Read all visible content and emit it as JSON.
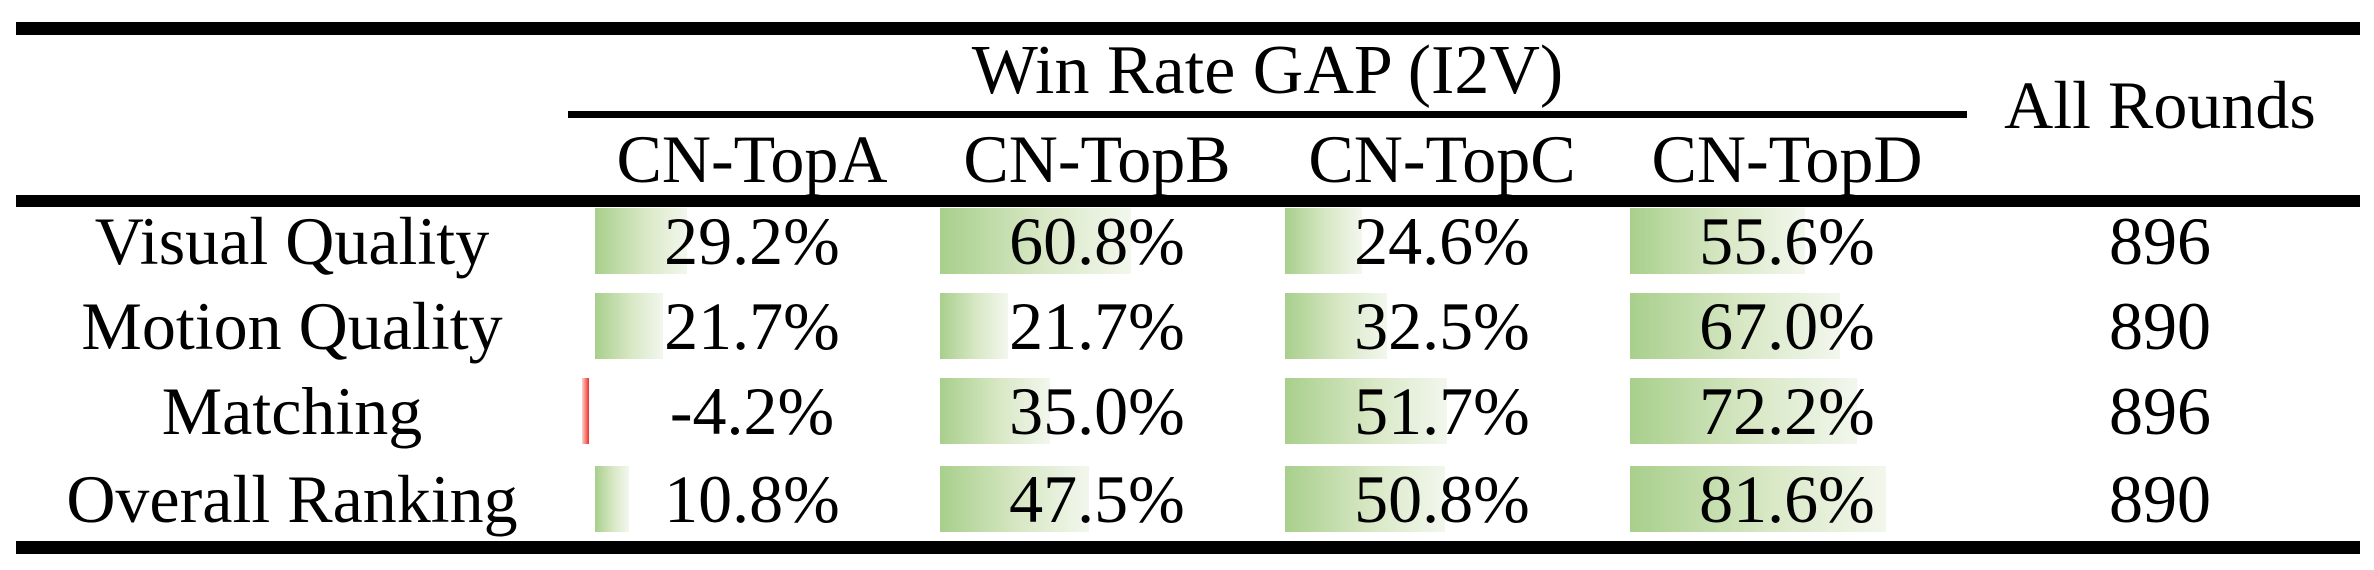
{
  "figure": {
    "title": "Win Rate GAP (I2V)",
    "all_rounds_label": "All Rounds",
    "columns": [
      "CN-TopA",
      "CN-TopB",
      "CN-TopC",
      "CN-TopD"
    ],
    "rows": [
      {
        "label": "Visual Quality",
        "cells": [
          {
            "text": "29.2%",
            "value": 29.2
          },
          {
            "text": "60.8%",
            "value": 60.8
          },
          {
            "text": "24.6%",
            "value": 24.6
          },
          {
            "text": "55.6%",
            "value": 55.6
          }
        ],
        "all_rounds": "896"
      },
      {
        "label": "Motion Quality",
        "cells": [
          {
            "text": "21.7%",
            "value": 21.7
          },
          {
            "text": "21.7%",
            "value": 21.7
          },
          {
            "text": "32.5%",
            "value": 32.5
          },
          {
            "text": "67.0%",
            "value": 67.0
          }
        ],
        "all_rounds": "890"
      },
      {
        "label": "Matching",
        "cells": [
          {
            "text": "-4.2%",
            "value": -4.2
          },
          {
            "text": "35.0%",
            "value": 35.0
          },
          {
            "text": "51.7%",
            "value": 51.7
          },
          {
            "text": "72.2%",
            "value": 72.2
          }
        ],
        "all_rounds": "896"
      },
      {
        "label": "Overall Ranking",
        "cells": [
          {
            "text": "10.8%",
            "value": 10.8
          },
          {
            "text": "47.5%",
            "value": 47.5
          },
          {
            "text": "50.8%",
            "value": 50.8
          },
          {
            "text": "81.6%",
            "value": 81.6
          }
        ],
        "all_rounds": "890"
      }
    ],
    "colors": {
      "rule": "#000000",
      "text": "#000000",
      "background": "#ffffff",
      "positive_bar": "#a8cf8c",
      "negative_bar": "#ee2f27"
    }
  },
  "chart_data": {
    "type": "table",
    "title": "Win Rate GAP (I2V)",
    "row_header": [
      "Visual Quality",
      "Motion Quality",
      "Matching",
      "Overall Ranking"
    ],
    "columns": [
      "CN-TopA",
      "CN-TopB",
      "CN-TopC",
      "CN-TopD",
      "All Rounds"
    ],
    "series": [
      {
        "name": "Visual Quality",
        "values": [
          29.2,
          60.8,
          24.6,
          55.6
        ],
        "all_rounds": 896
      },
      {
        "name": "Motion Quality",
        "values": [
          21.7,
          21.7,
          32.5,
          67.0
        ],
        "all_rounds": 890
      },
      {
        "name": "Matching",
        "values": [
          -4.2,
          35.0,
          51.7,
          72.2
        ],
        "all_rounds": 896
      },
      {
        "name": "Overall Ranking",
        "values": [
          10.8,
          47.5,
          50.8,
          81.6
        ],
        "all_rounds": 890
      }
    ],
    "value_unit": "%",
    "bar_scale_max": 100,
    "notes": "in-cell gradient data bars, green positive, red negative"
  }
}
